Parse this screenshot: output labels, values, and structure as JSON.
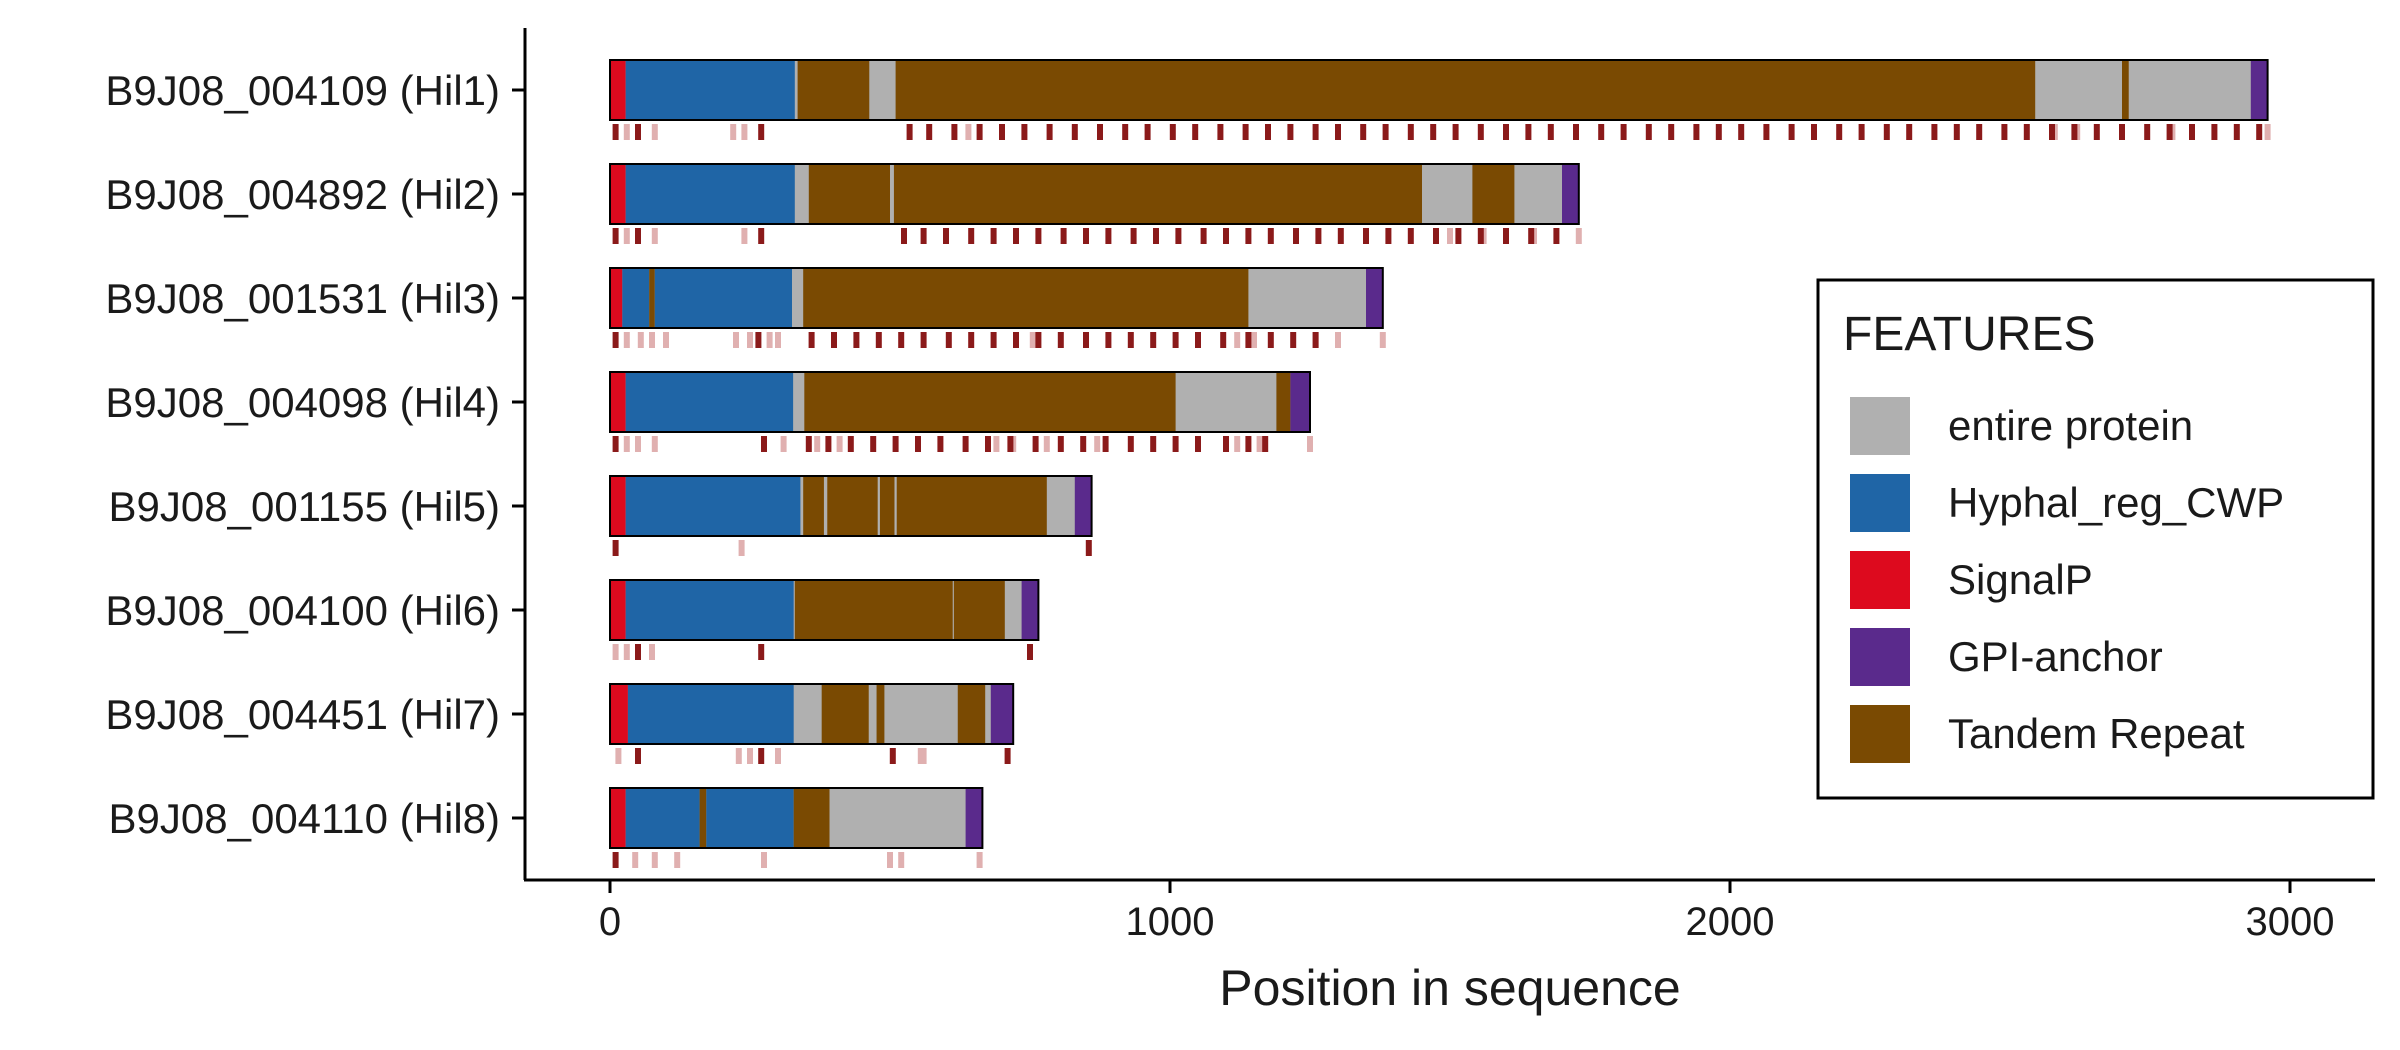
{
  "chart_data": {
    "type": "bar",
    "orientation": "horizontal",
    "xlabel": "Position in sequence",
    "ylabel": "",
    "xlim": [
      -150,
      3090
    ],
    "xticks": [
      0,
      1000,
      2000,
      3000
    ],
    "xtick_labels": [
      "0",
      "1000",
      "2000",
      "3000"
    ],
    "grid": false,
    "legend": {
      "title": "FEATURES",
      "placement": "right",
      "entries": [
        {
          "name": "entire protein",
          "color": "#b0b0b0"
        },
        {
          "name": "Hyphal_reg_CWP",
          "color": "#1f65a6"
        },
        {
          "name": "SignalP",
          "color": "#dd0a1e"
        },
        {
          "name": "GPI-anchor",
          "color": "#5a2a8c"
        },
        {
          "name": "Tandem Repeat",
          "color": "#7a4a02"
        }
      ]
    },
    "colors": {
      "entire protein": "#b0b0b0",
      "Hyphal_reg_CWP": "#1f65a6",
      "SignalP": "#dd0a1e",
      "GPI-anchor": "#5a2a8c",
      "Tandem Repeat": "#7a4a02",
      "tick_strong": "#8b1a1a",
      "tick_light": "#e0b0b0"
    },
    "proteins": [
      {
        "label": "B9J08_004109 (Hil1)",
        "length": 2960,
        "segments": [
          {
            "feature": "SignalP",
            "start": 0,
            "end": 28
          },
          {
            "feature": "Hyphal_reg_CWP",
            "start": 28,
            "end": 330
          },
          {
            "feature": "Tandem Repeat",
            "start": 335,
            "end": 463
          },
          {
            "feature": "Tandem Repeat",
            "start": 510,
            "end": 2545
          },
          {
            "feature": "Tandem Repeat",
            "start": 2700,
            "end": 2712
          },
          {
            "feature": "GPI-anchor",
            "start": 2930,
            "end": 2960
          }
        ],
        "ticks_strong": [
          10,
          50,
          270,
          535,
          570,
          615,
          660,
          700,
          740,
          785,
          830,
          875,
          920,
          960,
          1005,
          1045,
          1090,
          1135,
          1175,
          1215,
          1260,
          1300,
          1345,
          1385,
          1430,
          1470,
          1510,
          1555,
          1600,
          1640,
          1680,
          1725,
          1770,
          1810,
          1855,
          1895,
          1940,
          1980,
          2020,
          2065,
          2110,
          2150,
          2195,
          2235,
          2280,
          2320,
          2365,
          2405,
          2445,
          2490,
          2530,
          2575,
          2615,
          2655,
          2700,
          2745,
          2785,
          2825,
          2865,
          2905,
          2945
        ],
        "ticks_light": [
          30,
          80,
          220,
          240,
          640,
          2580,
          2620,
          2790,
          2960
        ]
      },
      {
        "label": "B9J08_004892 (Hil2)",
        "length": 1730,
        "segments": [
          {
            "feature": "SignalP",
            "start": 0,
            "end": 28
          },
          {
            "feature": "Hyphal_reg_CWP",
            "start": 28,
            "end": 330
          },
          {
            "feature": "Tandem Repeat",
            "start": 355,
            "end": 500
          },
          {
            "feature": "Tandem Repeat",
            "start": 507,
            "end": 1450
          },
          {
            "feature": "Tandem Repeat",
            "start": 1540,
            "end": 1615
          },
          {
            "feature": "GPI-anchor",
            "start": 1700,
            "end": 1730
          }
        ],
        "ticks_strong": [
          10,
          50,
          270,
          525,
          560,
          600,
          645,
          685,
          725,
          765,
          810,
          850,
          890,
          935,
          975,
          1015,
          1060,
          1100,
          1140,
          1180,
          1225,
          1265,
          1305,
          1350,
          1390,
          1430,
          1475,
          1515,
          1555,
          1600,
          1645,
          1690
        ],
        "ticks_light": [
          30,
          80,
          240,
          1500,
          1560,
          1650,
          1730
        ]
      },
      {
        "label": "B9J08_001531 (Hil3)",
        "length": 1380,
        "segments": [
          {
            "feature": "SignalP",
            "start": 0,
            "end": 22
          },
          {
            "feature": "Hyphal_reg_CWP",
            "start": 22,
            "end": 70
          },
          {
            "feature": "Tandem Repeat",
            "start": 70,
            "end": 80
          },
          {
            "feature": "Hyphal_reg_CWP",
            "start": 80,
            "end": 325
          },
          {
            "feature": "Tandem Repeat",
            "start": 345,
            "end": 1140
          },
          {
            "feature": "GPI-anchor",
            "start": 1350,
            "end": 1380
          }
        ],
        "ticks_strong": [
          10,
          265,
          360,
          400,
          440,
          480,
          520,
          560,
          605,
          645,
          685,
          725,
          765,
          805,
          850,
          890,
          930,
          970,
          1010,
          1050,
          1095,
          1140,
          1180,
          1220,
          1260
        ],
        "ticks_light": [
          30,
          55,
          75,
          100,
          225,
          250,
          285,
          300,
          755,
          1120,
          1150,
          1260,
          1300,
          1380
        ]
      },
      {
        "label": "B9J08_004098 (Hil4)",
        "length": 1250,
        "segments": [
          {
            "feature": "SignalP",
            "start": 0,
            "end": 28
          },
          {
            "feature": "Hyphal_reg_CWP",
            "start": 28,
            "end": 327
          },
          {
            "feature": "Tandem Repeat",
            "start": 347,
            "end": 1010
          },
          {
            "feature": "Tandem Repeat",
            "start": 1190,
            "end": 1215
          },
          {
            "feature": "GPI-anchor",
            "start": 1215,
            "end": 1250
          }
        ],
        "ticks_strong": [
          10,
          275,
          355,
          390,
          430,
          470,
          510,
          550,
          590,
          635,
          675,
          715,
          760,
          805,
          845,
          885,
          930,
          970,
          1010,
          1050,
          1100,
          1140,
          1170
        ],
        "ticks_light": [
          30,
          50,
          80,
          310,
          370,
          410,
          690,
          720,
          780,
          870,
          1050,
          1120,
          1160,
          1250
        ]
      },
      {
        "label": "B9J08_001155 (Hil5)",
        "length": 860,
        "segments": [
          {
            "feature": "SignalP",
            "start": 0,
            "end": 28
          },
          {
            "feature": "Hyphal_reg_CWP",
            "start": 28,
            "end": 340
          },
          {
            "feature": "Tandem Repeat",
            "start": 345,
            "end": 382
          },
          {
            "feature": "Tandem Repeat",
            "start": 388,
            "end": 478
          },
          {
            "feature": "Tandem Repeat",
            "start": 482,
            "end": 508
          },
          {
            "feature": "Tandem Repeat",
            "start": 512,
            "end": 780
          },
          {
            "feature": "GPI-anchor",
            "start": 830,
            "end": 860
          }
        ],
        "ticks_strong": [
          10,
          855
        ],
        "ticks_light": [
          235
        ]
      },
      {
        "label": "B9J08_004100 (Hil6)",
        "length": 765,
        "segments": [
          {
            "feature": "SignalP",
            "start": 0,
            "end": 28
          },
          {
            "feature": "Hyphal_reg_CWP",
            "start": 28,
            "end": 328
          },
          {
            "feature": "Tandem Repeat",
            "start": 330,
            "end": 612
          },
          {
            "feature": "Tandem Repeat",
            "start": 614,
            "end": 705
          },
          {
            "feature": "GPI-anchor",
            "start": 735,
            "end": 765
          }
        ],
        "ticks_strong": [
          50,
          270,
          750
        ],
        "ticks_light": [
          10,
          30,
          75
        ]
      },
      {
        "label": "B9J08_004451 (Hil7)",
        "length": 720,
        "segments": [
          {
            "feature": "SignalP",
            "start": 0,
            "end": 32
          },
          {
            "feature": "Hyphal_reg_CWP",
            "start": 32,
            "end": 328
          },
          {
            "feature": "Tandem Repeat",
            "start": 378,
            "end": 462
          },
          {
            "feature": "Tandem Repeat",
            "start": 476,
            "end": 490
          },
          {
            "feature": "Tandem Repeat",
            "start": 621,
            "end": 670
          },
          {
            "feature": "GPI-anchor",
            "start": 680,
            "end": 720
          }
        ],
        "ticks_strong": [
          50,
          270,
          505,
          710
        ],
        "ticks_light": [
          15,
          230,
          250,
          300,
          555,
          560
        ]
      },
      {
        "label": "B9J08_004110 (Hil8)",
        "length": 665,
        "segments": [
          {
            "feature": "SignalP",
            "start": 0,
            "end": 28
          },
          {
            "feature": "Hyphal_reg_CWP",
            "start": 28,
            "end": 160
          },
          {
            "feature": "Tandem Repeat",
            "start": 160,
            "end": 172
          },
          {
            "feature": "Hyphal_reg_CWP",
            "start": 172,
            "end": 328
          },
          {
            "feature": "Tandem Repeat",
            "start": 328,
            "end": 392
          },
          {
            "feature": "GPI-anchor",
            "start": 635,
            "end": 665
          }
        ],
        "ticks_strong": [
          10
        ],
        "ticks_light": [
          45,
          80,
          120,
          275,
          500,
          520,
          660
        ]
      }
    ]
  }
}
